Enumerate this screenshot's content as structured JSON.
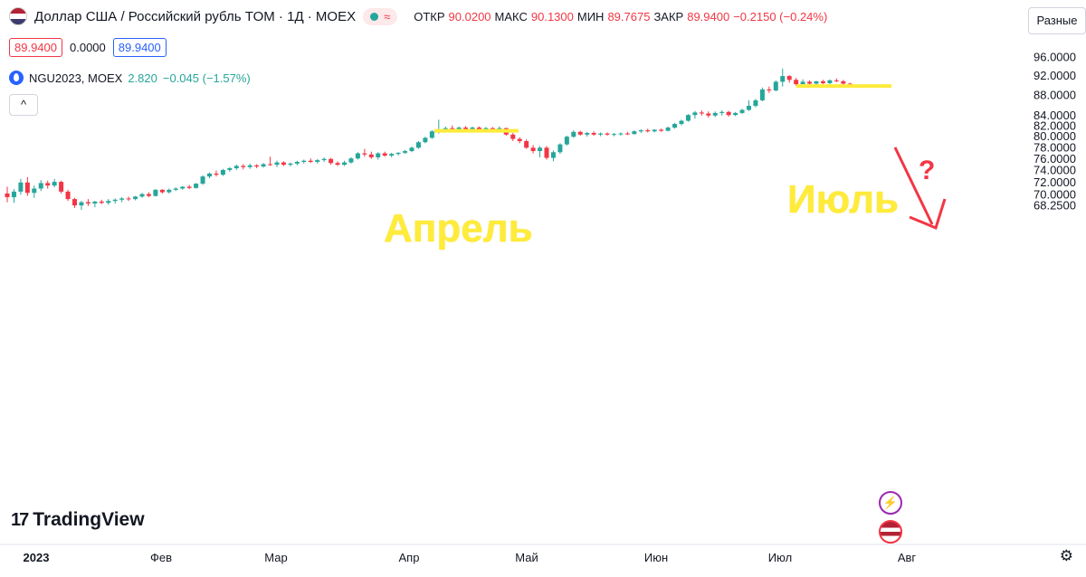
{
  "header": {
    "title": "Доллар США / Российский рубль TOM · 1Д · MOEX",
    "status_glyph": "≈",
    "ohlc": [
      {
        "k": "ОТКР",
        "v": "90.0200"
      },
      {
        "k": "МАКС",
        "v": "90.1300"
      },
      {
        "k": "МИН",
        "v": "89.7675"
      },
      {
        "k": "ЗАКР",
        "v": "89.9400"
      }
    ],
    "change": "−0.2150 (−0.24%)"
  },
  "scale_mode": "Разные",
  "values_row": {
    "bid": "89.9400",
    "spread": "0.0000",
    "ask": "89.9400"
  },
  "indicator": {
    "name": "NGU2023, MOEX",
    "value": "2.820",
    "change": "−0.045 (−1.57%)"
  },
  "collapse_glyph": "^",
  "brand": {
    "name": "TradingView",
    "logo": "17"
  },
  "annotations": {
    "april": "Апрель",
    "july": "Июль",
    "question": "?"
  },
  "icons": {
    "flag": "us-flag-icon",
    "gear": "gear-icon",
    "lightning": "lightning-icon"
  },
  "colors": {
    "up": "#26a69a",
    "down": "#f23645",
    "annotation": "#ffeb3b",
    "arrow": "#f23645"
  },
  "chart_data": {
    "type": "candlestick",
    "y_axis": {
      "labels": [
        "96.0000",
        "92.0000",
        "88.0000",
        "84.0000",
        "82.0000",
        "80.0000",
        "78.0000",
        "76.0000",
        "74.0000",
        "72.0000",
        "70.0000",
        "68.2500"
      ],
      "range": [
        67.7,
        97.4
      ],
      "scale": "log"
    },
    "x_axis": {
      "labels": [
        "2023",
        "Фев",
        "Мар",
        "Апр",
        "Май",
        "Июн",
        "Июл",
        "Авг"
      ]
    },
    "legend": "none",
    "grid": false,
    "series": [
      {
        "o": 70.2,
        "h": 71.3,
        "l": 68.8,
        "c": 69.6
      },
      {
        "o": 69.6,
        "h": 70.9,
        "l": 68.7,
        "c": 70.5
      },
      {
        "o": 70.5,
        "h": 72.6,
        "l": 70.0,
        "c": 72.0
      },
      {
        "o": 72.0,
        "h": 72.9,
        "l": 69.8,
        "c": 70.3
      },
      {
        "o": 70.3,
        "h": 71.5,
        "l": 69.5,
        "c": 71.0
      },
      {
        "o": 71.0,
        "h": 72.4,
        "l": 70.6,
        "c": 71.9
      },
      {
        "o": 71.9,
        "h": 72.3,
        "l": 71.0,
        "c": 71.5
      },
      {
        "o": 71.5,
        "h": 72.6,
        "l": 71.2,
        "c": 72.1
      },
      {
        "o": 72.1,
        "h": 72.3,
        "l": 70.2,
        "c": 70.5
      },
      {
        "o": 70.5,
        "h": 70.8,
        "l": 69.0,
        "c": 69.3
      },
      {
        "o": 69.3,
        "h": 69.5,
        "l": 67.9,
        "c": 68.3
      },
      {
        "o": 68.3,
        "h": 69.0,
        "l": 67.6,
        "c": 68.8
      },
      {
        "o": 68.8,
        "h": 69.3,
        "l": 68.2,
        "c": 68.6
      },
      {
        "o": 68.6,
        "h": 69.0,
        "l": 68.0,
        "c": 68.9
      },
      {
        "o": 68.9,
        "h": 69.2,
        "l": 68.5,
        "c": 68.7
      },
      {
        "o": 68.7,
        "h": 69.3,
        "l": 68.4,
        "c": 69.0
      },
      {
        "o": 69.0,
        "h": 69.4,
        "l": 68.6,
        "c": 69.2
      },
      {
        "o": 69.2,
        "h": 69.6,
        "l": 68.8,
        "c": 69.4
      },
      {
        "o": 69.4,
        "h": 69.7,
        "l": 69.0,
        "c": 69.3
      },
      {
        "o": 69.3,
        "h": 69.8,
        "l": 69.1,
        "c": 69.7
      },
      {
        "o": 69.7,
        "h": 70.3,
        "l": 69.5,
        "c": 70.1
      },
      {
        "o": 70.1,
        "h": 70.4,
        "l": 69.6,
        "c": 69.8
      },
      {
        "o": 69.8,
        "h": 70.9,
        "l": 69.7,
        "c": 70.8
      },
      {
        "o": 70.8,
        "h": 70.9,
        "l": 70.2,
        "c": 70.4
      },
      {
        "o": 70.4,
        "h": 71.0,
        "l": 70.2,
        "c": 70.8
      },
      {
        "o": 70.8,
        "h": 71.2,
        "l": 70.6,
        "c": 71.0
      },
      {
        "o": 71.0,
        "h": 71.4,
        "l": 70.8,
        "c": 71.3
      },
      {
        "o": 71.3,
        "h": 71.6,
        "l": 70.9,
        "c": 71.1
      },
      {
        "o": 71.1,
        "h": 71.9,
        "l": 71.0,
        "c": 71.8
      },
      {
        "o": 71.8,
        "h": 73.2,
        "l": 71.6,
        "c": 73.0
      },
      {
        "o": 73.0,
        "h": 73.7,
        "l": 72.7,
        "c": 73.5
      },
      {
        "o": 73.5,
        "h": 74.0,
        "l": 73.0,
        "c": 73.3
      },
      {
        "o": 73.3,
        "h": 74.3,
        "l": 73.1,
        "c": 74.1
      },
      {
        "o": 74.1,
        "h": 74.6,
        "l": 73.8,
        "c": 74.4
      },
      {
        "o": 74.4,
        "h": 75.0,
        "l": 74.1,
        "c": 74.8
      },
      {
        "o": 74.8,
        "h": 75.1,
        "l": 74.2,
        "c": 74.6
      },
      {
        "o": 74.6,
        "h": 75.2,
        "l": 74.3,
        "c": 74.9
      },
      {
        "o": 74.9,
        "h": 75.1,
        "l": 74.4,
        "c": 74.7
      },
      {
        "o": 74.7,
        "h": 75.3,
        "l": 74.5,
        "c": 75.1
      },
      {
        "o": 75.1,
        "h": 76.4,
        "l": 74.8,
        "c": 75.0
      },
      {
        "o": 75.0,
        "h": 75.7,
        "l": 74.6,
        "c": 75.4
      },
      {
        "o": 75.4,
        "h": 75.6,
        "l": 74.8,
        "c": 75.0
      },
      {
        "o": 75.0,
        "h": 75.4,
        "l": 74.7,
        "c": 75.2
      },
      {
        "o": 75.2,
        "h": 75.7,
        "l": 74.9,
        "c": 75.5
      },
      {
        "o": 75.5,
        "h": 75.9,
        "l": 75.2,
        "c": 75.7
      },
      {
        "o": 75.7,
        "h": 76.1,
        "l": 75.3,
        "c": 75.5
      },
      {
        "o": 75.5,
        "h": 76.0,
        "l": 75.2,
        "c": 75.8
      },
      {
        "o": 75.8,
        "h": 76.3,
        "l": 75.5,
        "c": 76.0
      },
      {
        "o": 76.0,
        "h": 76.2,
        "l": 75.0,
        "c": 75.3
      },
      {
        "o": 75.3,
        "h": 75.6,
        "l": 74.8,
        "c": 75.0
      },
      {
        "o": 75.0,
        "h": 75.7,
        "l": 74.8,
        "c": 75.4
      },
      {
        "o": 75.4,
        "h": 76.3,
        "l": 75.2,
        "c": 76.1
      },
      {
        "o": 76.1,
        "h": 77.2,
        "l": 75.9,
        "c": 77.0
      },
      {
        "o": 77.0,
        "h": 77.8,
        "l": 76.4,
        "c": 76.8
      },
      {
        "o": 76.8,
        "h": 77.3,
        "l": 76.0,
        "c": 76.3
      },
      {
        "o": 76.3,
        "h": 77.2,
        "l": 75.9,
        "c": 77.0
      },
      {
        "o": 77.0,
        "h": 77.3,
        "l": 76.4,
        "c": 76.6
      },
      {
        "o": 76.6,
        "h": 77.1,
        "l": 76.3,
        "c": 76.9
      },
      {
        "o": 76.9,
        "h": 77.2,
        "l": 76.6,
        "c": 77.1
      },
      {
        "o": 77.1,
        "h": 77.6,
        "l": 76.9,
        "c": 77.4
      },
      {
        "o": 77.4,
        "h": 78.2,
        "l": 77.2,
        "c": 78.0
      },
      {
        "o": 78.0,
        "h": 79.2,
        "l": 77.8,
        "c": 79.0
      },
      {
        "o": 79.0,
        "h": 80.0,
        "l": 78.8,
        "c": 79.8
      },
      {
        "o": 79.8,
        "h": 81.2,
        "l": 79.6,
        "c": 81.0
      },
      {
        "o": 81.0,
        "h": 83.2,
        "l": 80.6,
        "c": 81.3
      },
      {
        "o": 81.3,
        "h": 81.9,
        "l": 80.8,
        "c": 81.6
      },
      {
        "o": 81.6,
        "h": 82.1,
        "l": 81.2,
        "c": 81.4
      },
      {
        "o": 81.4,
        "h": 81.9,
        "l": 81.0,
        "c": 81.7
      },
      {
        "o": 81.7,
        "h": 82.0,
        "l": 81.2,
        "c": 81.4
      },
      {
        "o": 81.4,
        "h": 81.9,
        "l": 81.2,
        "c": 81.7
      },
      {
        "o": 81.7,
        "h": 81.9,
        "l": 81.1,
        "c": 81.3
      },
      {
        "o": 81.3,
        "h": 81.8,
        "l": 81.0,
        "c": 81.6
      },
      {
        "o": 81.6,
        "h": 81.8,
        "l": 81.1,
        "c": 81.4
      },
      {
        "o": 81.4,
        "h": 81.9,
        "l": 81.2,
        "c": 81.6
      },
      {
        "o": 81.6,
        "h": 81.7,
        "l": 80.2,
        "c": 80.4
      },
      {
        "o": 80.4,
        "h": 80.7,
        "l": 79.2,
        "c": 79.6
      },
      {
        "o": 79.6,
        "h": 79.9,
        "l": 78.8,
        "c": 79.2
      },
      {
        "o": 79.2,
        "h": 79.5,
        "l": 77.8,
        "c": 78.0
      },
      {
        "o": 78.0,
        "h": 78.5,
        "l": 77.0,
        "c": 77.4
      },
      {
        "o": 77.4,
        "h": 78.3,
        "l": 76.3,
        "c": 78.0
      },
      {
        "o": 78.0,
        "h": 78.3,
        "l": 75.9,
        "c": 76.2
      },
      {
        "o": 76.2,
        "h": 77.5,
        "l": 75.6,
        "c": 77.2
      },
      {
        "o": 77.2,
        "h": 78.8,
        "l": 76.9,
        "c": 78.6
      },
      {
        "o": 78.6,
        "h": 80.2,
        "l": 78.4,
        "c": 80.0
      },
      {
        "o": 80.0,
        "h": 81.2,
        "l": 79.8,
        "c": 80.9
      },
      {
        "o": 80.9,
        "h": 81.1,
        "l": 80.2,
        "c": 80.4
      },
      {
        "o": 80.4,
        "h": 80.9,
        "l": 80.0,
        "c": 80.7
      },
      {
        "o": 80.7,
        "h": 81.0,
        "l": 80.2,
        "c": 80.4
      },
      {
        "o": 80.4,
        "h": 80.8,
        "l": 80.1,
        "c": 80.6
      },
      {
        "o": 80.6,
        "h": 80.8,
        "l": 80.2,
        "c": 80.4
      },
      {
        "o": 80.4,
        "h": 80.7,
        "l": 80.1,
        "c": 80.5
      },
      {
        "o": 80.5,
        "h": 80.8,
        "l": 80.2,
        "c": 80.6
      },
      {
        "o": 80.6,
        "h": 80.9,
        "l": 80.3,
        "c": 80.5
      },
      {
        "o": 80.5,
        "h": 81.2,
        "l": 80.4,
        "c": 81.0
      },
      {
        "o": 81.0,
        "h": 81.4,
        "l": 80.7,
        "c": 81.2
      },
      {
        "o": 81.2,
        "h": 81.5,
        "l": 80.8,
        "c": 81.0
      },
      {
        "o": 81.0,
        "h": 81.4,
        "l": 80.8,
        "c": 81.3
      },
      {
        "o": 81.3,
        "h": 81.5,
        "l": 80.9,
        "c": 81.1
      },
      {
        "o": 81.1,
        "h": 81.9,
        "l": 81.0,
        "c": 81.7
      },
      {
        "o": 81.7,
        "h": 82.6,
        "l": 81.5,
        "c": 82.4
      },
      {
        "o": 82.4,
        "h": 83.2,
        "l": 82.1,
        "c": 83.0
      },
      {
        "o": 83.0,
        "h": 84.3,
        "l": 82.8,
        "c": 84.1
      },
      {
        "o": 84.1,
        "h": 84.9,
        "l": 83.4,
        "c": 84.6
      },
      {
        "o": 84.6,
        "h": 85.0,
        "l": 84.0,
        "c": 84.4
      },
      {
        "o": 84.4,
        "h": 84.8,
        "l": 83.6,
        "c": 84.0
      },
      {
        "o": 84.0,
        "h": 84.8,
        "l": 83.7,
        "c": 84.5
      },
      {
        "o": 84.5,
        "h": 85.0,
        "l": 84.0,
        "c": 84.7
      },
      {
        "o": 84.7,
        "h": 84.9,
        "l": 83.8,
        "c": 84.1
      },
      {
        "o": 84.1,
        "h": 84.7,
        "l": 83.9,
        "c": 84.5
      },
      {
        "o": 84.5,
        "h": 85.3,
        "l": 84.3,
        "c": 85.1
      },
      {
        "o": 85.1,
        "h": 87.0,
        "l": 84.9,
        "c": 85.9
      },
      {
        "o": 85.9,
        "h": 87.3,
        "l": 85.6,
        "c": 87.0
      },
      {
        "o": 87.0,
        "h": 89.6,
        "l": 86.8,
        "c": 89.2
      },
      {
        "o": 89.2,
        "h": 89.8,
        "l": 88.5,
        "c": 89.0
      },
      {
        "o": 89.0,
        "h": 91.1,
        "l": 88.8,
        "c": 90.8
      },
      {
        "o": 90.8,
        "h": 93.6,
        "l": 89.8,
        "c": 92.0
      },
      {
        "o": 92.0,
        "h": 92.2,
        "l": 90.6,
        "c": 91.2
      },
      {
        "o": 91.2,
        "h": 91.6,
        "l": 90.0,
        "c": 90.3
      },
      {
        "o": 90.3,
        "h": 91.3,
        "l": 90.0,
        "c": 90.8
      },
      {
        "o": 90.8,
        "h": 91.1,
        "l": 90.2,
        "c": 90.4
      },
      {
        "o": 90.4,
        "h": 91.0,
        "l": 90.0,
        "c": 90.9
      },
      {
        "o": 90.9,
        "h": 91.2,
        "l": 90.3,
        "c": 90.5
      },
      {
        "o": 90.5,
        "h": 91.3,
        "l": 90.3,
        "c": 91.1
      },
      {
        "o": 91.1,
        "h": 91.5,
        "l": 90.7,
        "c": 90.9
      },
      {
        "o": 90.9,
        "h": 91.2,
        "l": 90.2,
        "c": 90.4
      },
      {
        "o": 90.4,
        "h": 90.6,
        "l": 89.9,
        "c": 90.1
      },
      {
        "o": 90.02,
        "h": 90.13,
        "l": 89.7675,
        "c": 89.94
      }
    ],
    "levels": [
      {
        "label": "Апрель",
        "value": 81.1
      },
      {
        "label": "Июль",
        "value": 89.9
      }
    ]
  }
}
